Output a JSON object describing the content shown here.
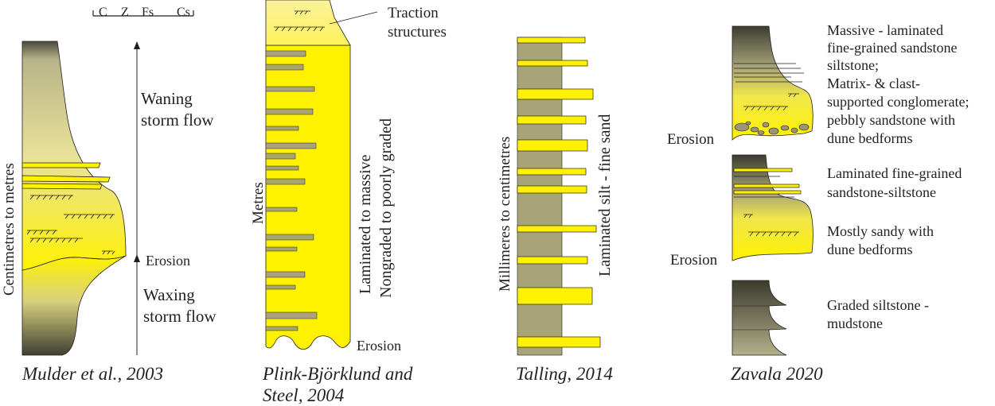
{
  "panels": {
    "mulder": {
      "grain_scale": [
        "C",
        "Z",
        "Fs",
        "Cs"
      ],
      "axis_label": "Centimetres to metres",
      "waning_line1": "Waning",
      "waning_line2": "storm flow",
      "erosion": "Erosion",
      "waxing_line1": "Waxing",
      "waxing_line2": "storm flow",
      "caption": "Mulder et al., 2003"
    },
    "plink": {
      "traction_line1": "Traction",
      "traction_line2": "structures",
      "axis_label": "Metres",
      "desc_line1": "Laminated to massive",
      "desc_line2": "Nongraded to poorly graded",
      "erosion": "Erosion",
      "caption_line1": "Plink-Björklund and",
      "caption_line2": "Steel, 2004"
    },
    "talling": {
      "axis_label": "Millimeres to centimetres",
      "desc": "Laminated silt - fine sand",
      "caption": "Talling, 2014"
    },
    "zavala": {
      "erosion_top": "Erosion",
      "erosion_bottom": "Erosion",
      "unit1_lines": [
        "Massive - laminated",
        "fine-grained  sandstone",
        "siltstone;",
        "Matrix- & clast-",
        "supported conglomerate;",
        "pebbly sandstone with",
        "dune bedforms"
      ],
      "unit2_lines": [
        "Laminated fine-grained",
        "sandstone-siltstone"
      ],
      "unit3_lines": [
        "Mostly sandy with",
        "dune bedforms"
      ],
      "unit4_lines": [
        "Graded siltstone -",
        "mudstone"
      ],
      "caption": "Zavala 2020"
    }
  },
  "colors": {
    "sand": "#fff200",
    "mud": "#a8a478",
    "dark": "#3d3d30",
    "line": "#231f20"
  }
}
